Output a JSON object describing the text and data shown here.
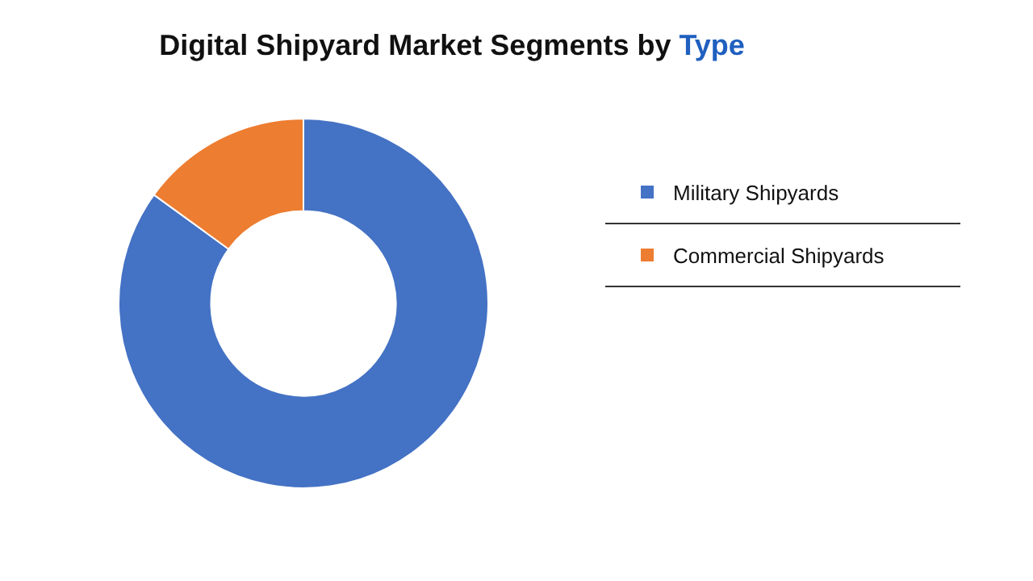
{
  "chart_data": {
    "type": "donut",
    "title": "Digital Shipyard Market Segments by Type",
    "categories": [
      "Military Shipyards",
      "Commercial Shipyards"
    ],
    "values": [
      85,
      15
    ],
    "colors": [
      "#4472c4",
      "#ed7d31"
    ],
    "legend": "right"
  }
}
